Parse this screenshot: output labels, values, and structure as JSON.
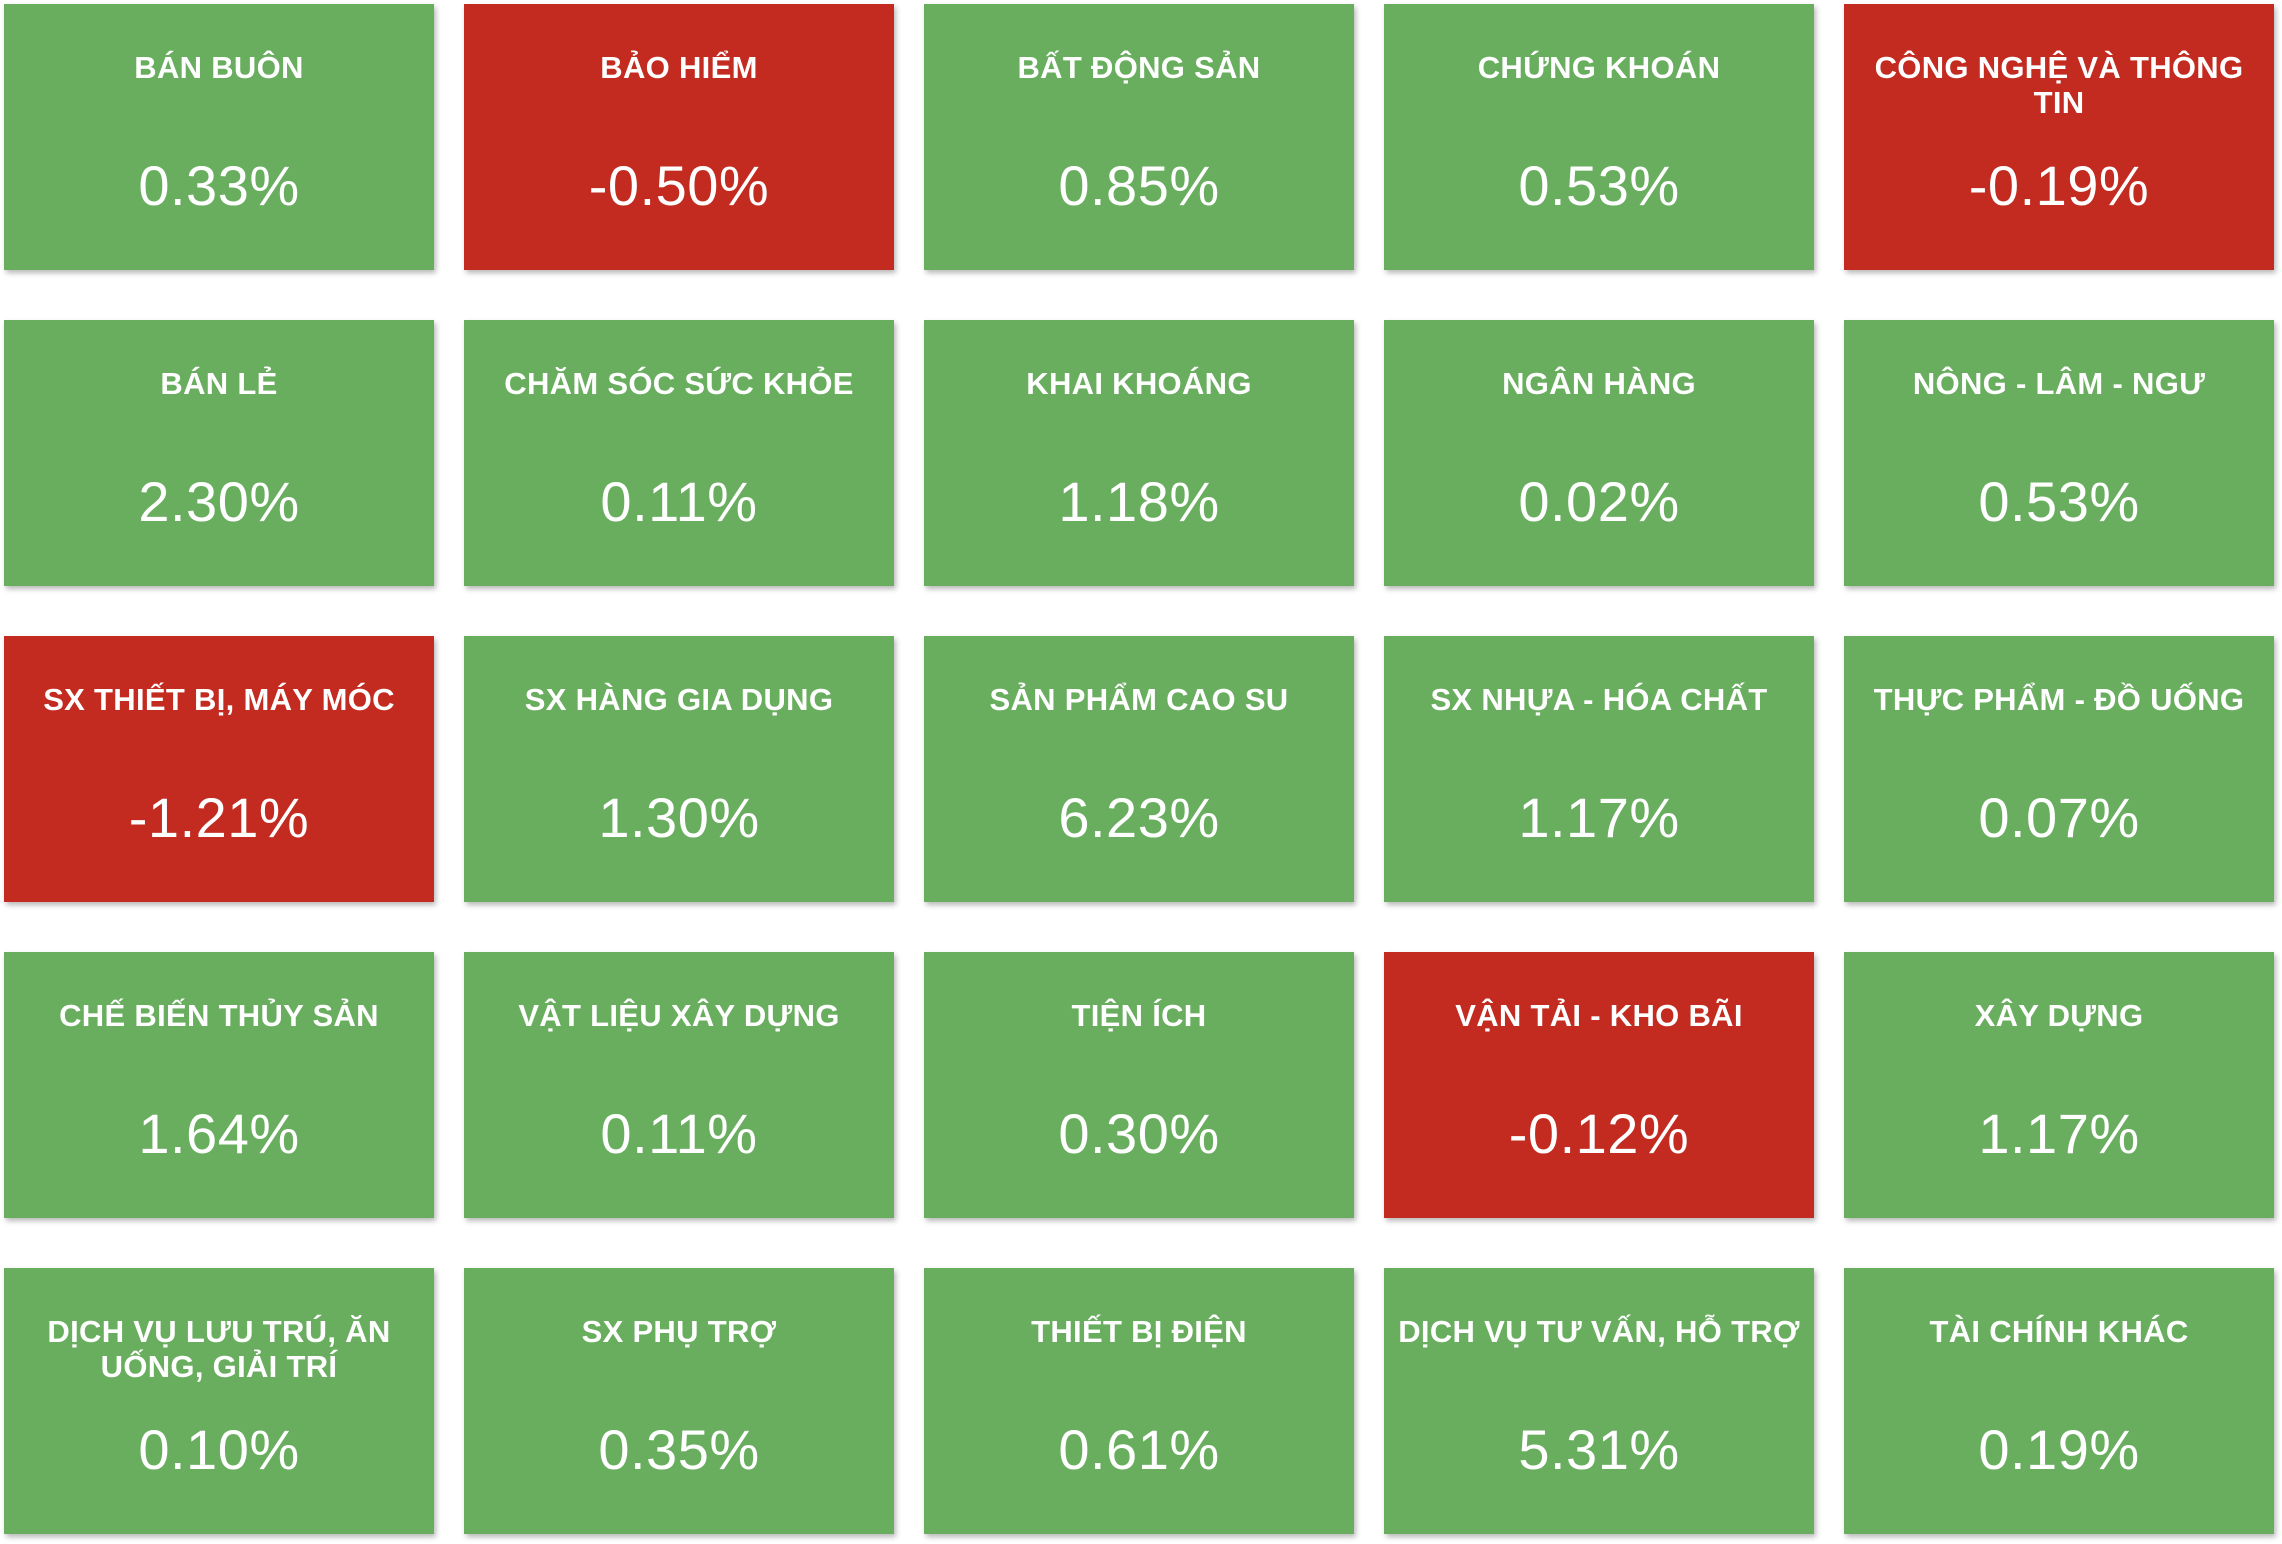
{
  "colors": {
    "positive": "#69ae5f",
    "negative": "#c32a20",
    "text": "#ffffff"
  },
  "sectors": [
    {
      "name": "BÁN BUÔN",
      "change": "0.33%",
      "direction": "up"
    },
    {
      "name": "BẢO HIỂM",
      "change": "-0.50%",
      "direction": "down"
    },
    {
      "name": "BẤT ĐỘNG SẢN",
      "change": "0.85%",
      "direction": "up"
    },
    {
      "name": "CHỨNG KHOÁN",
      "change": "0.53%",
      "direction": "up"
    },
    {
      "name": "CÔNG NGHỆ VÀ THÔNG TIN",
      "change": "-0.19%",
      "direction": "down"
    },
    {
      "name": "BÁN LẺ",
      "change": "2.30%",
      "direction": "up"
    },
    {
      "name": "CHĂM SÓC SỨC KHỎE",
      "change": "0.11%",
      "direction": "up"
    },
    {
      "name": "KHAI KHOÁNG",
      "change": "1.18%",
      "direction": "up"
    },
    {
      "name": "NGÂN HÀNG",
      "change": "0.02%",
      "direction": "up"
    },
    {
      "name": "NÔNG - LÂM - NGƯ",
      "change": "0.53%",
      "direction": "up"
    },
    {
      "name": "SX THIẾT BỊ, MÁY MÓC",
      "change": "-1.21%",
      "direction": "down"
    },
    {
      "name": "SX HÀNG GIA DỤNG",
      "change": "1.30%",
      "direction": "up"
    },
    {
      "name": "SẢN PHẨM CAO SU",
      "change": "6.23%",
      "direction": "up"
    },
    {
      "name": "SX NHỰA - HÓA CHẤT",
      "change": "1.17%",
      "direction": "up"
    },
    {
      "name": "THỰC PHẨM - ĐỒ UỐNG",
      "change": "0.07%",
      "direction": "up"
    },
    {
      "name": "CHẾ BIẾN THỦY SẢN",
      "change": "1.64%",
      "direction": "up"
    },
    {
      "name": "VẬT LIỆU XÂY DỰNG",
      "change": "0.11%",
      "direction": "up"
    },
    {
      "name": "TIỆN ÍCH",
      "change": "0.30%",
      "direction": "up"
    },
    {
      "name": "VẬN TẢI - KHO BÃI",
      "change": "-0.12%",
      "direction": "down"
    },
    {
      "name": "XÂY DỰNG",
      "change": "1.17%",
      "direction": "up"
    },
    {
      "name": "DỊCH VỤ LƯU TRÚ, ĂN UỐNG, GIẢI TRÍ",
      "change": "0.10%",
      "direction": "up"
    },
    {
      "name": "SX PHỤ TRỢ",
      "change": "0.35%",
      "direction": "up"
    },
    {
      "name": "THIẾT BỊ ĐIỆN",
      "change": "0.61%",
      "direction": "up"
    },
    {
      "name": "DỊCH VỤ TƯ VẤN, HỖ TRỢ",
      "change": "5.31%",
      "direction": "up"
    },
    {
      "name": "TÀI CHÍNH KHÁC",
      "change": "0.19%",
      "direction": "up"
    }
  ]
}
